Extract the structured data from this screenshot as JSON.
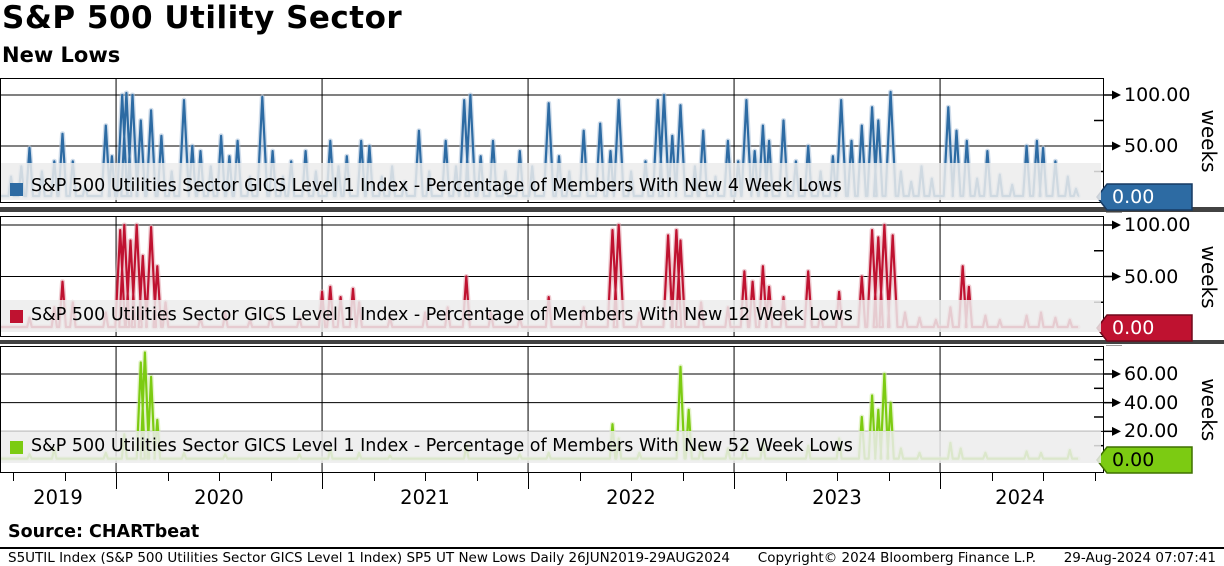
{
  "header": {
    "title": "S&P 500 Utility Sector",
    "subtitle": "New Lows"
  },
  "source_line": "Source: CHARTbeat",
  "footer": {
    "left": "S5UTIL Index (S&P 500 Utilities Sector GICS Level 1 Index) SP5 UT New Lows  Daily 26JUN2019-29AUG2024",
    "center": "Copyright© 2024 Bloomberg Finance L.P.",
    "right": "29-Aug-2024 07:07:41"
  },
  "x_axis": {
    "years": [
      "2019",
      "2020",
      "2021",
      "2022",
      "2023",
      "2024"
    ],
    "start_date": "26JUN2019",
    "end_date": "29AUG2024"
  },
  "chart_data": [
    {
      "type": "line",
      "panel_label": "4-weeks",
      "legend": "S&P 500 Utilities Sector GICS Level 1 Index - Percentage of Members With New 4 Week Lows",
      "color": "#2d6ba3",
      "halo_color": "#a8c0d9",
      "tag_stroke": "#173a63",
      "tag_text_color": "#ffffff",
      "zero_tag": "0.00",
      "ylim": [
        0,
        117
      ],
      "yticks": [
        50,
        100
      ],
      "yticks_minor": [
        25,
        75
      ],
      "x_unit": "decimal_year",
      "baseline": 1,
      "points_encoding": "spike peaks [decimal_year, percent]; series rests near 0 between spikes",
      "points": [
        [
          2019.49,
          20
        ],
        [
          2019.54,
          30
        ],
        [
          2019.58,
          48
        ],
        [
          2019.64,
          25
        ],
        [
          2019.7,
          35
        ],
        [
          2019.74,
          62
        ],
        [
          2019.79,
          35
        ],
        [
          2019.85,
          12
        ],
        [
          2019.95,
          70
        ],
        [
          2019.98,
          40
        ],
        [
          2020.03,
          100
        ],
        [
          2020.05,
          102
        ],
        [
          2020.08,
          100
        ],
        [
          2020.12,
          75
        ],
        [
          2020.17,
          85
        ],
        [
          2020.22,
          60
        ],
        [
          2020.27,
          25
        ],
        [
          2020.33,
          95
        ],
        [
          2020.37,
          50
        ],
        [
          2020.41,
          45
        ],
        [
          2020.46,
          30
        ],
        [
          2020.51,
          60
        ],
        [
          2020.55,
          40
        ],
        [
          2020.59,
          55
        ],
        [
          2020.65,
          20
        ],
        [
          2020.71,
          98
        ],
        [
          2020.76,
          45
        ],
        [
          2020.81,
          20
        ],
        [
          2020.85,
          35
        ],
        [
          2020.92,
          45
        ],
        [
          2020.97,
          25
        ],
        [
          2021.04,
          55
        ],
        [
          2021.08,
          30
        ],
        [
          2021.12,
          40
        ],
        [
          2021.19,
          55
        ],
        [
          2021.23,
          50
        ],
        [
          2021.29,
          20
        ],
        [
          2021.34,
          30
        ],
        [
          2021.4,
          15
        ],
        [
          2021.47,
          65
        ],
        [
          2021.52,
          25
        ],
        [
          2021.6,
          55
        ],
        [
          2021.65,
          30
        ],
        [
          2021.69,
          95
        ],
        [
          2021.72,
          100
        ],
        [
          2021.77,
          40
        ],
        [
          2021.83,
          55
        ],
        [
          2021.89,
          25
        ],
        [
          2021.96,
          45
        ],
        [
          2022.02,
          30
        ],
        [
          2022.1,
          92
        ],
        [
          2022.15,
          40
        ],
        [
          2022.2,
          25
        ],
        [
          2022.27,
          65
        ],
        [
          2022.35,
          72
        ],
        [
          2022.4,
          45
        ],
        [
          2022.44,
          95
        ],
        [
          2022.5,
          25
        ],
        [
          2022.57,
          35
        ],
        [
          2022.63,
          95
        ],
        [
          2022.66,
          100
        ],
        [
          2022.7,
          60
        ],
        [
          2022.74,
          90
        ],
        [
          2022.81,
          30
        ],
        [
          2022.85,
          65
        ],
        [
          2022.91,
          20
        ],
        [
          2022.97,
          55
        ],
        [
          2023.02,
          35
        ],
        [
          2023.06,
          95
        ],
        [
          2023.1,
          45
        ],
        [
          2023.14,
          70
        ],
        [
          2023.17,
          55
        ],
        [
          2023.24,
          75
        ],
        [
          2023.3,
          35
        ],
        [
          2023.36,
          50
        ],
        [
          2023.42,
          25
        ],
        [
          2023.48,
          40
        ],
        [
          2023.52,
          95
        ],
        [
          2023.57,
          55
        ],
        [
          2023.62,
          70
        ],
        [
          2023.67,
          88
        ],
        [
          2023.7,
          75
        ],
        [
          2023.76,
          103
        ],
        [
          2023.81,
          25
        ],
        [
          2023.86,
          15
        ],
        [
          2023.91,
          30
        ],
        [
          2023.96,
          18
        ],
        [
          2024.04,
          88
        ],
        [
          2024.08,
          65
        ],
        [
          2024.13,
          55
        ],
        [
          2024.18,
          18
        ],
        [
          2024.23,
          45
        ],
        [
          2024.29,
          22
        ],
        [
          2024.35,
          12
        ],
        [
          2024.42,
          50
        ],
        [
          2024.47,
          55
        ],
        [
          2024.5,
          48
        ],
        [
          2024.56,
          35
        ],
        [
          2024.62,
          20
        ],
        [
          2024.66,
          8
        ]
      ]
    },
    {
      "type": "line",
      "panel_label": "12-weeks",
      "legend": "S&P 500 Utilities Sector GICS Level 1 Index - Percentage of Members With New 12 Week Lows",
      "color": "#bf1230",
      "halo_color": "#e0a0ab",
      "tag_stroke": "#70091c",
      "tag_text_color": "#ffffff",
      "zero_tag": "0.00",
      "ylim": [
        0,
        109
      ],
      "yticks": [
        50,
        100
      ],
      "yticks_minor": [
        25,
        75
      ],
      "x_unit": "decimal_year",
      "baseline": 1,
      "points_encoding": "spike peaks [decimal_year, percent]; series rests near 0 between spikes",
      "points": [
        [
          2019.58,
          10
        ],
        [
          2019.7,
          20
        ],
        [
          2019.74,
          45
        ],
        [
          2019.79,
          25
        ],
        [
          2019.95,
          15
        ],
        [
          2020.02,
          95
        ],
        [
          2020.04,
          100
        ],
        [
          2020.07,
          85
        ],
        [
          2020.1,
          100
        ],
        [
          2020.13,
          70
        ],
        [
          2020.17,
          98
        ],
        [
          2020.2,
          60
        ],
        [
          2020.24,
          25
        ],
        [
          2020.41,
          10
        ],
        [
          2020.53,
          15
        ],
        [
          2020.65,
          8
        ],
        [
          2020.75,
          12
        ],
        [
          2020.89,
          10
        ],
        [
          2021.0,
          35
        ],
        [
          2021.04,
          40
        ],
        [
          2021.09,
          30
        ],
        [
          2021.15,
          38
        ],
        [
          2021.18,
          25
        ],
        [
          2021.33,
          10
        ],
        [
          2021.5,
          15
        ],
        [
          2021.61,
          20
        ],
        [
          2021.7,
          50
        ],
        [
          2021.82,
          15
        ],
        [
          2021.96,
          10
        ],
        [
          2022.1,
          30
        ],
        [
          2022.27,
          20
        ],
        [
          2022.41,
          95
        ],
        [
          2022.44,
          100
        ],
        [
          2022.54,
          15
        ],
        [
          2022.68,
          90
        ],
        [
          2022.72,
          95
        ],
        [
          2022.74,
          85
        ],
        [
          2022.84,
          25
        ],
        [
          2022.97,
          20
        ],
        [
          2023.05,
          55
        ],
        [
          2023.09,
          45
        ],
        [
          2023.14,
          60
        ],
        [
          2023.17,
          40
        ],
        [
          2023.24,
          30
        ],
        [
          2023.36,
          55
        ],
        [
          2023.42,
          15
        ],
        [
          2023.51,
          35
        ],
        [
          2023.62,
          50
        ],
        [
          2023.67,
          95
        ],
        [
          2023.7,
          88
        ],
        [
          2023.73,
          100
        ],
        [
          2023.77,
          90
        ],
        [
          2023.83,
          15
        ],
        [
          2023.9,
          10
        ],
        [
          2023.98,
          8
        ],
        [
          2024.05,
          20
        ],
        [
          2024.11,
          60
        ],
        [
          2024.14,
          40
        ],
        [
          2024.22,
          12
        ],
        [
          2024.29,
          8
        ],
        [
          2024.42,
          12
        ],
        [
          2024.49,
          15
        ],
        [
          2024.56,
          10
        ],
        [
          2024.63,
          8
        ]
      ]
    },
    {
      "type": "line",
      "panel_label": "52-weeks",
      "legend": "S&P 500 Utilities Sector GICS Level 1 Index - Percentage of Members With New 52 Week Lows",
      "color": "#7ccb12",
      "halo_color": "#cfe9a2",
      "tag_stroke": "#3f7000",
      "tag_text_color": "#000000",
      "zero_tag": "0.00",
      "ylim": [
        0,
        80
      ],
      "yticks": [
        20,
        40,
        60
      ],
      "yticks_minor": [
        10,
        30,
        50,
        70
      ],
      "x_unit": "decimal_year",
      "baseline": 1,
      "points_encoding": "spike peaks [decimal_year, percent]; series rests near 0 between spikes",
      "points": [
        [
          2019.58,
          4
        ],
        [
          2019.7,
          8
        ],
        [
          2019.95,
          5
        ],
        [
          2020.04,
          18
        ],
        [
          2020.12,
          68
        ],
        [
          2020.14,
          75
        ],
        [
          2020.17,
          58
        ],
        [
          2020.2,
          28
        ],
        [
          2020.33,
          5
        ],
        [
          2020.53,
          4
        ],
        [
          2020.89,
          4
        ],
        [
          2021.04,
          8
        ],
        [
          2021.18,
          5
        ],
        [
          2021.33,
          3
        ],
        [
          2021.7,
          10
        ],
        [
          2021.96,
          4
        ],
        [
          2022.1,
          5
        ],
        [
          2022.41,
          25
        ],
        [
          2022.44,
          15
        ],
        [
          2022.54,
          5
        ],
        [
          2022.74,
          65
        ],
        [
          2022.78,
          35
        ],
        [
          2022.84,
          10
        ],
        [
          2022.97,
          8
        ],
        [
          2023.05,
          10
        ],
        [
          2023.14,
          12
        ],
        [
          2023.36,
          10
        ],
        [
          2023.51,
          15
        ],
        [
          2023.62,
          30
        ],
        [
          2023.67,
          45
        ],
        [
          2023.7,
          35
        ],
        [
          2023.73,
          60
        ],
        [
          2023.76,
          40
        ],
        [
          2023.81,
          8
        ],
        [
          2023.9,
          5
        ],
        [
          2024.05,
          12
        ],
        [
          2024.1,
          8
        ],
        [
          2024.22,
          5
        ],
        [
          2024.42,
          6
        ],
        [
          2024.49,
          5
        ],
        [
          2024.63,
          7
        ]
      ]
    }
  ]
}
